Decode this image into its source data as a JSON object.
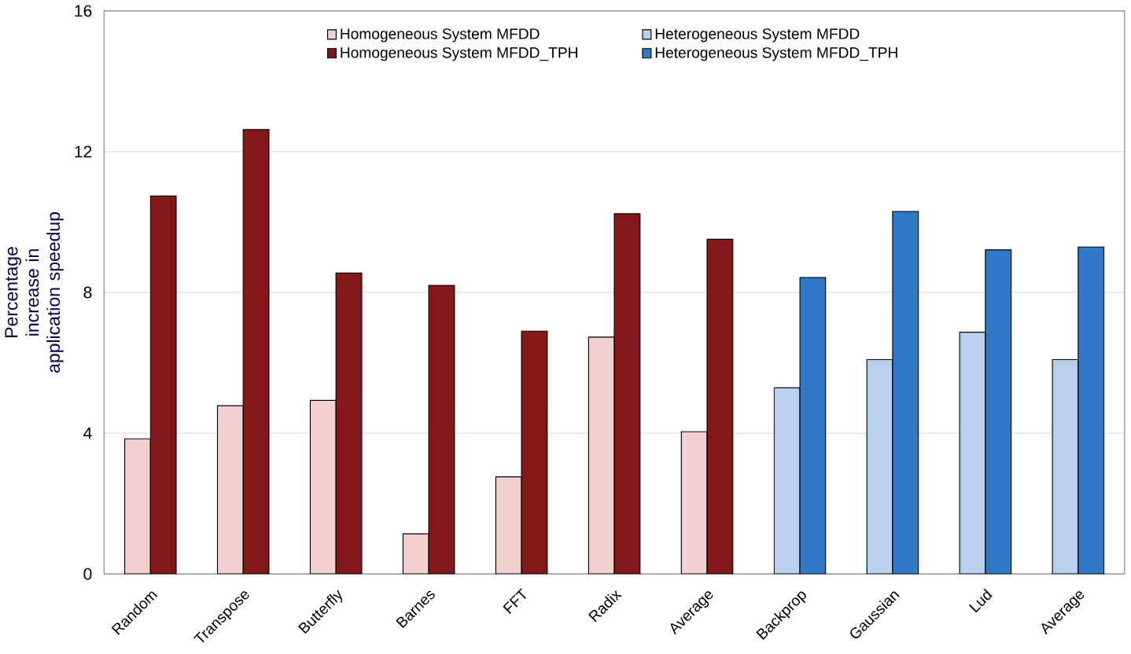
{
  "chart_data": {
    "type": "bar",
    "ylabel": "Percentage increase in application speedup",
    "categories": [
      "Random",
      "Transpose",
      "Butterfly",
      "Barnes",
      "FFT",
      "Radix",
      "Average",
      "Backprop",
      "Gaussian",
      "Lud",
      "Average"
    ],
    "series": [
      {
        "name": "Homogeneous System MFDD",
        "color": "#f2d0d0",
        "values": [
          3.84,
          4.78,
          4.93,
          1.14,
          2.76,
          6.73,
          4.04,
          null,
          null,
          null,
          null
        ]
      },
      {
        "name": "Homogeneous System MFDD_TPH",
        "color": "#841818",
        "values": [
          10.74,
          12.63,
          8.55,
          8.2,
          6.9,
          10.24,
          9.51,
          null,
          null,
          null,
          null
        ]
      },
      {
        "name": "Heterogeneous System MFDD",
        "color": "#b9cfeb",
        "values": [
          null,
          null,
          null,
          null,
          null,
          null,
          null,
          5.29,
          6.09,
          6.87,
          6.09
        ]
      },
      {
        "name": "Heterogeneous System MFDD_TPH",
        "color": "#3179c8",
        "values": [
          null,
          null,
          null,
          null,
          null,
          null,
          null,
          8.42,
          10.3,
          9.21,
          9.29
        ]
      }
    ],
    "ylim": [
      0,
      16
    ],
    "yticks": [
      0,
      4,
      8,
      12,
      16
    ],
    "grid": "y",
    "legend": "top"
  }
}
